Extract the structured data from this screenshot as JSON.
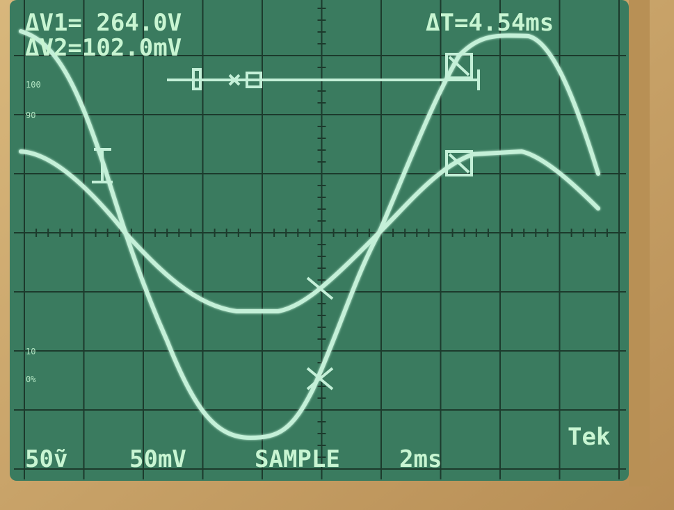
{
  "readouts": {
    "delta_v1": "ΔV1= 264.0V",
    "delta_v2": "ΔV2=102.0mV",
    "delta_t": "ΔT=4.54ms"
  },
  "scale_marks": [
    "100",
    "90",
    "10",
    "0%"
  ],
  "status": {
    "ch1": "50ṽ",
    "ch2": "50mV",
    "mode": "SAMPLE",
    "timebase": "2ms",
    "brand": "Tek"
  }
}
